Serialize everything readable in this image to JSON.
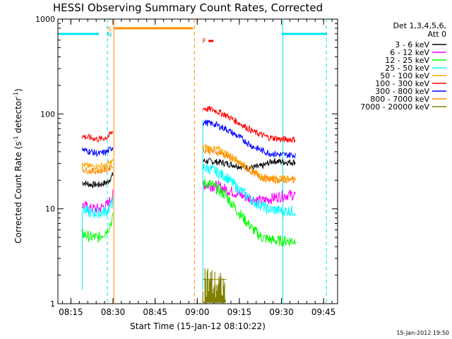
{
  "chart_data": {
    "type": "line",
    "title": "HESSI Observing Summary Count Rates, Corrected",
    "xlabel": "Start Time (15-Jan-12 08:10:22)",
    "ylabel": "Corrected Count Rate (s",
    "ylabel_sup1": "-1",
    "ylabel_mid": " detector",
    "ylabel_sup2": "-1",
    "ylabel_end": ")",
    "timestamp": "15-Jan-2012 19:50",
    "y_scale": "log",
    "ylim": [
      1,
      1000
    ],
    "x_range_minutes": [
      "08:10:22",
      "09:50:00"
    ],
    "x_ticks": [
      "08:15",
      "08:30",
      "08:45",
      "09:00",
      "09:15",
      "09:30",
      "09:45"
    ],
    "x_tick_minutes": [
      495,
      510,
      525,
      540,
      555,
      570,
      585
    ],
    "y_ticks": [
      "1",
      "10",
      "100",
      "1000"
    ],
    "y_tick_values": [
      1,
      10,
      100,
      1000
    ],
    "legend": {
      "header1": "Det 1,3,4,5,6,",
      "header2": "Att 0",
      "placement": "right"
    },
    "flags": [
      {
        "label": "S",
        "color": "#ff8c00",
        "minute": 508.7
      },
      {
        "label": "N",
        "color": "#00c8c8",
        "minute": 508.7
      },
      {
        "label": "F",
        "color": "#ff0000",
        "minute": 542.5
      }
    ],
    "series": [
      {
        "name": "3 - 6 keV",
        "color": "#000000",
        "seg1": [
          [
            499,
            19
          ],
          [
            502,
            18
          ],
          [
            505,
            18
          ],
          [
            508,
            19
          ],
          [
            510,
            23
          ]
        ],
        "seg2": [
          [
            542,
            32
          ],
          [
            548,
            31
          ],
          [
            553,
            29
          ],
          [
            558,
            27
          ],
          [
            563,
            28
          ],
          [
            567,
            32
          ],
          [
            572,
            31
          ],
          [
            575,
            31
          ]
        ]
      },
      {
        "name": "6 - 12 keV",
        "color": "#ff00ff",
        "seg1": [
          [
            499,
            11
          ],
          [
            502,
            10
          ],
          [
            505,
            10
          ],
          [
            508,
            11
          ],
          [
            510,
            14
          ]
        ],
        "seg2": [
          [
            542,
            18
          ],
          [
            548,
            17
          ],
          [
            553,
            15
          ],
          [
            558,
            13
          ],
          [
            563,
            12
          ],
          [
            567,
            13
          ],
          [
            572,
            14
          ],
          [
            575,
            14
          ]
        ]
      },
      {
        "name": "12 - 25 keV",
        "color": "#00ff00",
        "seg1": [
          [
            499,
            5.5
          ],
          [
            502,
            5
          ],
          [
            505,
            5
          ],
          [
            508,
            6
          ],
          [
            510,
            8
          ]
        ],
        "seg2": [
          [
            542,
            19
          ],
          [
            545,
            18
          ],
          [
            550,
            14
          ],
          [
            555,
            9
          ],
          [
            560,
            6
          ],
          [
            563,
            5
          ],
          [
            568,
            4.6
          ],
          [
            575,
            4.6
          ]
        ]
      },
      {
        "name": "25 - 50 keV",
        "color": "#00ffff",
        "seg1": [
          [
            499,
            10
          ],
          [
            502,
            9
          ],
          [
            505,
            9
          ],
          [
            508,
            9.5
          ],
          [
            510,
            12
          ]
        ],
        "seg2": [
          [
            542,
            27
          ],
          [
            545,
            26
          ],
          [
            550,
            22
          ],
          [
            555,
            16
          ],
          [
            560,
            12
          ],
          [
            565,
            10
          ],
          [
            570,
            9.5
          ],
          [
            575,
            9.5
          ]
        ]
      },
      {
        "name": "50 - 100 keV",
        "color": "#ffa500",
        "seg1": [
          [
            499,
            29
          ],
          [
            502,
            28
          ],
          [
            505,
            28
          ],
          [
            508,
            29
          ],
          [
            510,
            32
          ]
        ],
        "seg2": [
          [
            542,
            45
          ],
          [
            548,
            42
          ],
          [
            553,
            35
          ],
          [
            558,
            27
          ],
          [
            563,
            22
          ],
          [
            568,
            21
          ],
          [
            575,
            21
          ]
        ]
      },
      {
        "name": "100 - 300 keV",
        "color": "#ff0000",
        "seg1": [
          [
            499,
            58
          ],
          [
            502,
            56
          ],
          [
            505,
            54
          ],
          [
            508,
            57
          ],
          [
            510,
            65
          ]
        ],
        "seg2": [
          [
            542,
            115
          ],
          [
            546,
            110
          ],
          [
            550,
            98
          ],
          [
            555,
            80
          ],
          [
            560,
            65
          ],
          [
            565,
            57
          ],
          [
            570,
            54
          ],
          [
            575,
            54
          ]
        ]
      },
      {
        "name": "300 - 800 keV",
        "color": "#0000ff",
        "seg1": [
          [
            499,
            42
          ],
          [
            502,
            40
          ],
          [
            505,
            38
          ],
          [
            508,
            40
          ],
          [
            510,
            45
          ]
        ],
        "seg2": [
          [
            542,
            82
          ],
          [
            546,
            78
          ],
          [
            550,
            70
          ],
          [
            555,
            57
          ],
          [
            560,
            45
          ],
          [
            565,
            39
          ],
          [
            570,
            37
          ],
          [
            575,
            37
          ]
        ]
      },
      {
        "name": "800 - 7000 keV",
        "color": "#ff8c00",
        "seg1": [
          [
            499,
            26
          ],
          [
            502,
            25
          ],
          [
            505,
            25
          ],
          [
            508,
            26
          ],
          [
            510,
            29
          ]
        ],
        "seg2": [
          [
            542,
            42
          ],
          [
            548,
            39
          ],
          [
            553,
            33
          ],
          [
            558,
            26
          ],
          [
            563,
            21
          ],
          [
            568,
            20
          ],
          [
            575,
            20
          ]
        ]
      },
      {
        "name": "7000 - 20000 keV",
        "color": "#808000",
        "seg1": [],
        "seg2": [
          [
            542,
            2.5
          ],
          [
            544,
            2.2
          ],
          [
            546,
            2.0
          ],
          [
            548,
            1.9
          ],
          [
            550,
            1.8
          ]
        ]
      }
    ]
  }
}
